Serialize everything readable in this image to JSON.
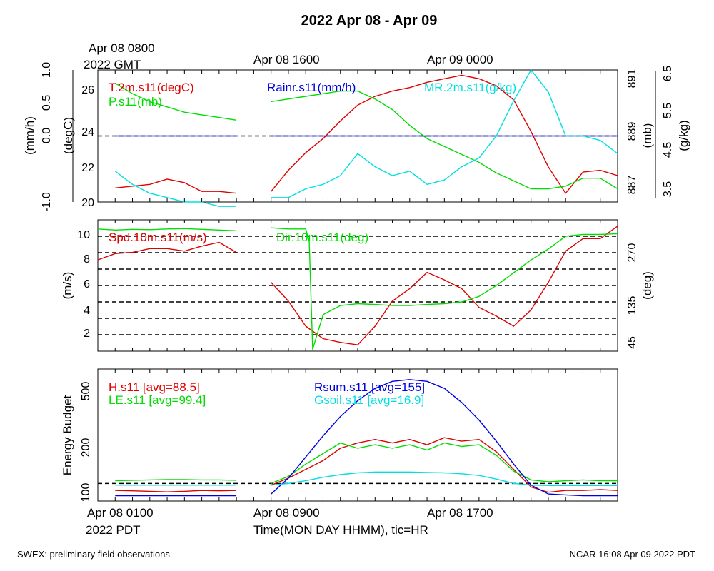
{
  "figure": {
    "title": "2022 Apr 08 - Apr 09",
    "top_labels": [
      "Apr 08 0800",
      "2022 GMT",
      "Apr 08 1600",
      "Apr 09 0000"
    ],
    "bottom_labels": [
      "Apr 08 0100",
      "2022 PDT",
      "Apr 08 0900",
      "Apr 08 1700"
    ],
    "xlabel": "Time(MON DAY HHMM), tic=HR",
    "footer_left": "SWEX: preliminary field observations",
    "footer_right": "NCAR 16:08 Apr 09 2022 PDT"
  },
  "chart_data": [
    {
      "type": "line",
      "panel": "top",
      "x_unit": "hours since Apr 08 0000 PDT",
      "xlim": [
        0,
        30
      ],
      "left_axis_outer": {
        "label": "(mm/h)",
        "ylim": [
          -1.0,
          1.0
        ],
        "ticks": [
          "-1.0",
          "0.0",
          "0.5",
          "1.0"
        ]
      },
      "left_axis_inner": {
        "label": "(degC)",
        "ylim": [
          20,
          27.5
        ],
        "ticks": [
          "20",
          "22",
          "24",
          "26"
        ]
      },
      "right_axis_inner": {
        "label": "(mb)",
        "ylim": [
          886.5,
          891.5
        ],
        "ticks": [
          "887",
          "889",
          "891"
        ]
      },
      "right_axis_outer": {
        "label": "(g/kg)",
        "ylim": [
          3.5,
          6.5
        ],
        "ticks": [
          "3.5",
          "4.5",
          "5.5",
          "6.5"
        ]
      },
      "reference_lines": [
        {
          "axis": "mm/h",
          "y": 0.0,
          "style": "dashed"
        }
      ],
      "series": [
        {
          "name": "T.2m.s11(degC)",
          "axis": "degC",
          "color": "#e00000",
          "segments": [
            {
              "x": [
                1,
                2,
                3,
                4,
                5,
                6,
                7,
                8
              ],
              "y": [
                20.8,
                20.9,
                21.0,
                21.3,
                21.1,
                20.6,
                20.6,
                20.5
              ]
            },
            {
              "x": [
                10,
                11,
                12,
                13,
                14,
                15,
                16,
                17,
                18,
                19,
                20,
                21,
                22,
                23,
                24,
                25,
                26,
                27,
                28,
                29,
                30
              ],
              "y": [
                20.6,
                21.8,
                22.8,
                23.6,
                24.6,
                25.5,
                26.0,
                26.3,
                26.5,
                26.8,
                27.0,
                27.2,
                27.0,
                26.6,
                25.8,
                24.0,
                22.0,
                20.5,
                21.7,
                21.8,
                21.5
              ]
            }
          ]
        },
        {
          "name": "P.s11(mb)",
          "axis": "mb",
          "color": "#00dd00",
          "segments": [
            {
              "x": [
                1,
                2,
                3,
                4,
                5,
                6,
                7,
                8
              ],
              "y": [
                891.0,
                890.6,
                890.3,
                890.1,
                889.9,
                889.8,
                889.7,
                889.6
              ]
            },
            {
              "x": [
                10,
                11,
                12,
                13,
                14,
                15,
                16,
                17,
                18,
                19,
                20,
                21,
                22,
                23,
                24,
                25,
                26,
                27,
                28,
                29,
                30
              ],
              "y": [
                890.3,
                890.4,
                890.5,
                890.6,
                890.7,
                890.7,
                890.4,
                890.0,
                889.4,
                888.9,
                888.6,
                888.3,
                888.0,
                887.6,
                887.3,
                887.0,
                887.0,
                887.1,
                887.4,
                887.4,
                887.0
              ]
            }
          ]
        },
        {
          "name": "Rainr.s11(mm/h)",
          "axis": "mm/h",
          "color": "#0000e0",
          "segments": [
            {
              "x": [
                1,
                2,
                3,
                4,
                5,
                6,
                7,
                8
              ],
              "y": [
                0.0,
                0.0,
                0.0,
                0.0,
                0.0,
                0.0,
                0.0,
                0.0
              ]
            },
            {
              "x": [
                10,
                11,
                12,
                13,
                14,
                15,
                16,
                17,
                18,
                19,
                20,
                21,
                22,
                23,
                24,
                25,
                26,
                27,
                28,
                29,
                30
              ],
              "y": [
                0.0,
                0.0,
                0.0,
                0.0,
                0.0,
                0.0,
                0.0,
                0.0,
                0.0,
                0.0,
                0.0,
                0.0,
                0.0,
                0.0,
                0.0,
                0.0,
                0.0,
                0.0,
                0.0,
                0.0,
                0.0
              ]
            }
          ]
        },
        {
          "name": "MR.2m.s11(g/kg)",
          "axis": "g/kg",
          "color": "#00e0e0",
          "segments": [
            {
              "x": [
                1,
                2,
                3,
                4,
                5,
                6,
                7,
                8
              ],
              "y": [
                4.2,
                3.9,
                3.7,
                3.6,
                3.5,
                3.5,
                3.4,
                3.4
              ]
            },
            {
              "x": [
                10,
                11,
                12,
                13,
                14,
                15,
                16,
                17,
                18,
                19,
                20,
                21,
                22,
                23,
                24,
                25,
                26,
                27,
                28,
                29,
                30
              ],
              "y": [
                3.6,
                3.6,
                3.8,
                3.9,
                4.1,
                4.6,
                4.3,
                4.1,
                4.2,
                3.9,
                4.0,
                4.3,
                4.5,
                5.0,
                5.8,
                6.5,
                6.0,
                5.0,
                5.0,
                4.9,
                4.6
              ]
            }
          ]
        }
      ]
    },
    {
      "type": "line",
      "panel": "middle",
      "x_unit": "hours since Apr 08 0000 PDT",
      "xlim": [
        0,
        30
      ],
      "left_axis": {
        "label": "(m/s)",
        "ylim": [
          0.5,
          11
        ],
        "ticks": [
          "2",
          "4",
          "6",
          "8",
          "10"
        ]
      },
      "right_axis": {
        "label": "(deg)",
        "ylim": [
          0,
          360
        ],
        "ticks": [
          "45",
          "135",
          "270"
        ]
      },
      "reference_lines": [
        {
          "axis": "deg",
          "y": 45,
          "style": "dashed"
        },
        {
          "axis": "deg",
          "y": 90,
          "style": "dashed"
        },
        {
          "axis": "deg",
          "y": 135,
          "style": "dashed"
        },
        {
          "axis": "deg",
          "y": 180,
          "style": "dashed"
        },
        {
          "axis": "deg",
          "y": 225,
          "style": "dashed"
        },
        {
          "axis": "deg",
          "y": 270,
          "style": "dashed"
        },
        {
          "axis": "deg",
          "y": 315,
          "style": "dashed"
        }
      ],
      "series": [
        {
          "name": "Spd.10m.s11(m/s)",
          "axis": "m/s",
          "color": "#e00000",
          "segments": [
            {
              "x": [
                0,
                1,
                2,
                3,
                4,
                5,
                6,
                7,
                8
              ],
              "y": [
                7.8,
                8.3,
                8.4,
                8.7,
                8.7,
                8.5,
                8.9,
                9.2,
                8.4
              ]
            },
            {
              "x": [
                10,
                11,
                12,
                13,
                14,
                15,
                16,
                17,
                18,
                19,
                20,
                21,
                22,
                23,
                24,
                25,
                26,
                27,
                28,
                29,
                30
              ],
              "y": [
                6.0,
                4.5,
                2.5,
                1.5,
                1.2,
                1.0,
                2.5,
                4.5,
                5.5,
                6.8,
                6.2,
                5.5,
                4.0,
                3.3,
                2.5,
                3.8,
                6.0,
                8.5,
                9.5,
                9.5,
                10.5
              ]
            }
          ]
        },
        {
          "name": "Dir.10m.s11(deg)",
          "axis": "deg",
          "color": "#00dd00",
          "segments": [
            {
              "x": [
                0,
                1,
                2,
                3,
                4,
                5,
                6,
                7,
                8
              ],
              "y": [
                335,
                332,
                334,
                333,
                335,
                336,
                334,
                332,
                330
              ]
            },
            {
              "x": [
                10,
                11,
                12,
                12.2,
                12.4,
                13,
                14,
                15,
                16,
                17,
                18,
                19,
                20,
                21,
                22,
                23,
                24,
                25,
                26,
                27,
                28,
                29,
                30
              ],
              "y": [
                338,
                335,
                335,
                300,
                5,
                100,
                125,
                130,
                128,
                125,
                125,
                128,
                130,
                135,
                150,
                180,
                215,
                250,
                280,
                315,
                320,
                320,
                322
              ]
            }
          ]
        }
      ]
    },
    {
      "type": "line",
      "panel": "bottom",
      "x_unit": "hours since Apr 08 0000 PDT",
      "xlim": [
        0,
        30
      ],
      "left_axis": {
        "label": "Energy Budget",
        "ylim": [
          -100,
          650
        ],
        "ticks": [
          "100",
          "200",
          "500"
        ]
      },
      "reference_lines": [
        {
          "axis": "energy",
          "y": 0,
          "style": "dashed"
        }
      ],
      "series": [
        {
          "name": "H.s11 [avg=88.5]",
          "color": "#e00000",
          "segments": [
            {
              "x": [
                1,
                2,
                3,
                4,
                5,
                6,
                7,
                8
              ],
              "y": [
                -40,
                -42,
                -45,
                -48,
                -45,
                -40,
                -42,
                -40
              ]
            },
            {
              "x": [
                10,
                11,
                12,
                13,
                14,
                15,
                16,
                17,
                18,
                19,
                20,
                21,
                22,
                23,
                24,
                25,
                26,
                27,
                28,
                29,
                30
              ],
              "y": [
                -10,
                30,
                80,
                130,
                200,
                230,
                250,
                230,
                250,
                220,
                260,
                240,
                250,
                180,
                80,
                -20,
                -50,
                -40,
                -40,
                -35,
                -40
              ]
            }
          ]
        },
        {
          "name": "LE.s11 [avg=99.4]",
          "color": "#00dd00",
          "segments": [
            {
              "x": [
                1,
                2,
                3,
                4,
                5,
                6,
                7,
                8
              ],
              "y": [
                15,
                18,
                20,
                22,
                22,
                20,
                20,
                18
              ]
            },
            {
              "x": [
                10,
                11,
                12,
                13,
                14,
                15,
                16,
                17,
                18,
                19,
                20,
                21,
                22,
                23,
                24,
                25,
                26,
                27,
                28,
                29,
                30
              ],
              "y": [
                0,
                40,
                110,
                170,
                230,
                200,
                220,
                200,
                220,
                190,
                230,
                210,
                220,
                160,
                70,
                20,
                10,
                15,
                20,
                15,
                15
              ]
            }
          ]
        },
        {
          "name": "Rsum.s11 [avg=155]",
          "color": "#0000e0",
          "segments": [
            {
              "x": [
                1,
                2,
                3,
                4,
                5,
                6,
                7,
                8
              ],
              "y": [
                -70,
                -70,
                -70,
                -70,
                -70,
                -70,
                -70,
                -70
              ]
            },
            {
              "x": [
                10,
                11,
                12,
                13,
                14,
                15,
                16,
                17,
                18,
                19,
                20,
                21,
                22,
                23,
                24,
                25,
                26,
                27,
                28,
                29,
                30
              ],
              "y": [
                -60,
                30,
                150,
                270,
                380,
                470,
                540,
                580,
                590,
                580,
                540,
                460,
                360,
                240,
                110,
                -10,
                -60,
                -65,
                -70,
                -70,
                -70
              ]
            }
          ]
        },
        {
          "name": "Gsoil.s11 [avg=16.9]",
          "color": "#00e0e0",
          "segments": [
            {
              "x": [
                1,
                2,
                3,
                4,
                5,
                6,
                7,
                8
              ],
              "y": [
                -10,
                -10,
                -10,
                -10,
                -10,
                -10,
                -10,
                -10
              ]
            },
            {
              "x": [
                10,
                11,
                12,
                13,
                14,
                15,
                16,
                17,
                18,
                19,
                20,
                21,
                22,
                23,
                24,
                25,
                26,
                27,
                28,
                29,
                30
              ],
              "y": [
                -10,
                0,
                15,
                35,
                50,
                60,
                65,
                65,
                65,
                62,
                60,
                55,
                45,
                25,
                0,
                -10,
                -12,
                -12,
                -12,
                -12,
                -12
              ]
            }
          ]
        }
      ]
    }
  ]
}
